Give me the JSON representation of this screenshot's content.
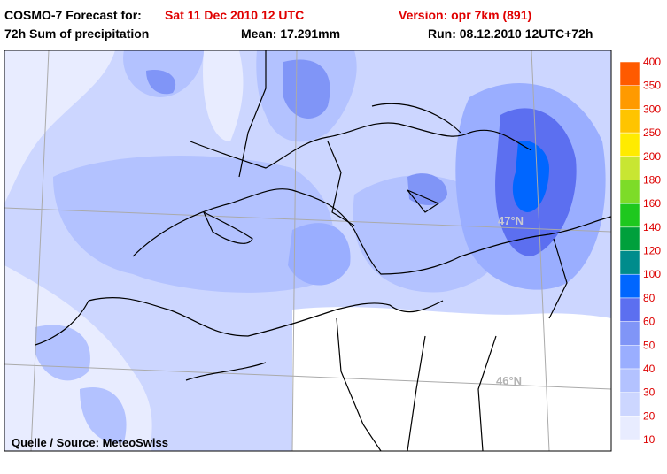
{
  "header": {
    "title_prefix": "COSMO-7 Forecast for:",
    "forecast_time": "Sat 11 Dec 2010 12 UTC",
    "version": "Version: opr 7km (891)",
    "product": "72h Sum of precipitation",
    "mean": "Mean: 17.291mm",
    "run": "Run: 08.12.2010 12UTC+72h"
  },
  "map": {
    "latitude_labels": [
      "47°N",
      "46°N"
    ],
    "source": "Quelle / Source: MeteoSwiss"
  },
  "legend": {
    "levels": [
      10,
      20,
      30,
      40,
      50,
      60,
      80,
      100,
      120,
      140,
      160,
      180,
      200,
      250,
      300,
      350,
      400
    ],
    "colors": [
      "#e8ecff",
      "#ccd6ff",
      "#b3c2ff",
      "#9aaeff",
      "#8095f7",
      "#5c6ff0",
      "#0066ff",
      "#008c8c",
      "#00a03c",
      "#1ec81e",
      "#7ddc28",
      "#c8e632",
      "#ffeb00",
      "#ffc400",
      "#ff9a00",
      "#ff5a00"
    ]
  }
}
